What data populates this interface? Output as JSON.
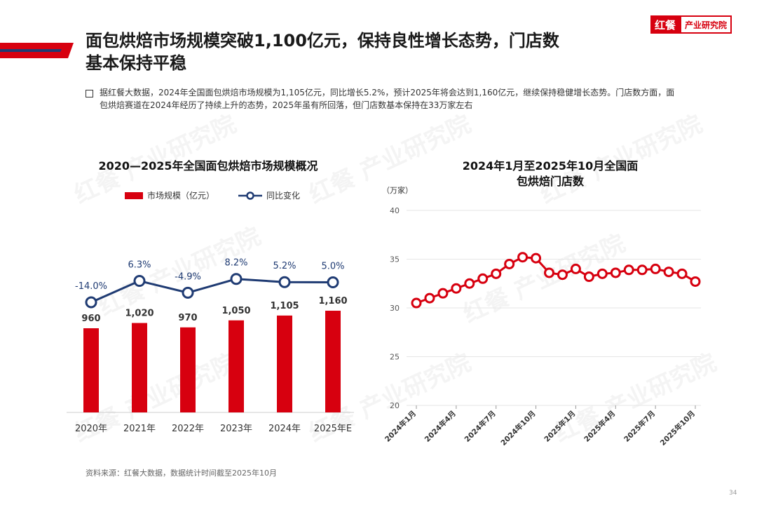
{
  "header": {
    "title_line1": "面包烘焙市场规模突破1,100亿元，保持良性增长态势，门店数",
    "title_line2": "基本保持平稳",
    "logo_brand": "红餐",
    "logo_institute": "产业研究院"
  },
  "intro": {
    "text": "据红餐大数据，2024年全国面包烘焙市场规模为1,105亿元，同比增长5.2%，预计2025年将会达到1,160亿元，继续保持稳健增长态势。门店数方面，面包烘焙赛道在2024年经历了持续上升的态势，2025年虽有所回落，但门店数基本保持在33万家左右"
  },
  "colors": {
    "accent": "#d7000f",
    "line": "#1f3b73",
    "axis": "#999999"
  },
  "watermark": "红餐 产业研究院",
  "source": "资料来源：红餐大数据，数据统计时间截至2025年10月",
  "page_number": "34",
  "chart_data": [
    {
      "type": "bar",
      "title": "2020—2025年全国面包烘焙市场规模概况",
      "categories": [
        "2020年",
        "2021年",
        "2022年",
        "2023年",
        "2024年",
        "2025年E"
      ],
      "series": [
        {
          "name": "市场规模（亿元）",
          "type": "bar",
          "values": [
            960,
            1020,
            970,
            1050,
            1105,
            1160
          ],
          "labels": [
            "960",
            "1,020",
            "970",
            "1,050",
            "1,105",
            "1,160"
          ]
        },
        {
          "name": "同比变化",
          "type": "line",
          "values": [
            -14.0,
            6.3,
            -4.9,
            8.2,
            5.2,
            5.0
          ],
          "labels": [
            "-14.0%",
            "6.3%",
            "-4.9%",
            "8.2%",
            "5.2%",
            "5.0%"
          ]
        }
      ],
      "bar_ylim": [
        0,
        1300
      ],
      "line_ylim": [
        -30,
        50
      ]
    },
    {
      "type": "line",
      "title": "2024年1月至2025年10月全国面包烘焙门店数",
      "title_line1": "2024年1月至2025年10月全国面",
      "title_line2": "包烘焙门店数",
      "ylabel": "（万家）",
      "ylim": [
        20,
        40
      ],
      "yticks": [
        20,
        25,
        30,
        35,
        40
      ],
      "xtick_labels": [
        "2024年1月",
        "2024年4月",
        "2024年7月",
        "2024年10月",
        "2025年1月",
        "2025年4月",
        "2025年7月",
        "2025年10月"
      ],
      "xtick_index": [
        0,
        3,
        6,
        9,
        12,
        15,
        18,
        21
      ],
      "x": [
        "2024-01",
        "2024-02",
        "2024-03",
        "2024-04",
        "2024-05",
        "2024-06",
        "2024-07",
        "2024-08",
        "2024-09",
        "2024-10",
        "2024-11",
        "2024-12",
        "2025-01",
        "2025-02",
        "2025-03",
        "2025-04",
        "2025-05",
        "2025-06",
        "2025-07",
        "2025-08",
        "2025-09",
        "2025-10"
      ],
      "values": [
        30.5,
        31.0,
        31.5,
        32.0,
        32.5,
        33.0,
        33.5,
        34.5,
        35.2,
        35.1,
        33.6,
        33.4,
        34.0,
        33.2,
        33.5,
        33.6,
        33.9,
        33.9,
        34.0,
        33.7,
        33.5,
        32.7
      ]
    }
  ]
}
